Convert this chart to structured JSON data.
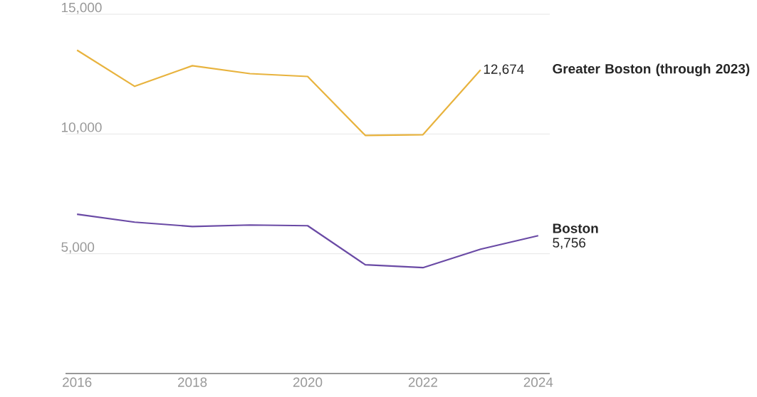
{
  "chart_data": {
    "type": "line",
    "x": [
      2016,
      2017,
      2018,
      2019,
      2020,
      2021,
      2022,
      2023,
      2024
    ],
    "series": [
      {
        "name": "**Greater Boston (through 2023)**",
        "color": "#e8b33e",
        "values": [
          13500,
          11990,
          12850,
          12520,
          12400,
          9940,
          9970,
          12674,
          null
        ],
        "value_labels": [
          null,
          null,
          null,
          null,
          null,
          null,
          null,
          "12,674",
          null
        ]
      },
      {
        "name": "**Boston**",
        "color": "#6a4aa5",
        "values": [
          6650,
          6320,
          6140,
          6200,
          6170,
          4540,
          4420,
          5190,
          5756
        ],
        "value_labels": [
          null,
          null,
          null,
          null,
          null,
          null,
          null,
          null,
          "5,756"
        ]
      }
    ],
    "xlim": [
      2015.8,
      2024.2
    ],
    "xticks": [
      2016,
      2018,
      2020,
      2022,
      2024
    ],
    "ylim": [
      0,
      15000
    ],
    "yticks": [
      {
        "value": 5000,
        "label": "5,000"
      },
      {
        "value": 10000,
        "label": "10,000"
      },
      {
        "value": 15000,
        "label": "15,000"
      }
    ],
    "grid": "y"
  }
}
